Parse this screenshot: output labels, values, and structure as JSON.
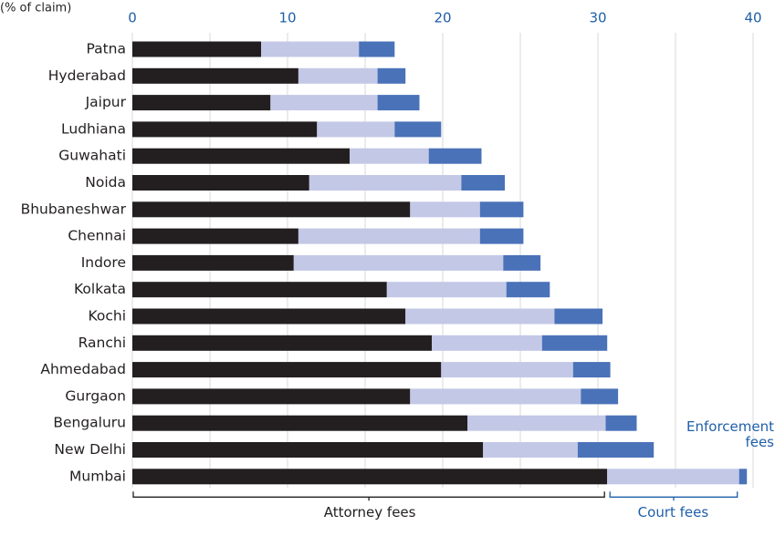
{
  "chart_data": {
    "type": "stacked-hbar",
    "x_label": "(% of claim)",
    "categories": [
      "Patna",
      "Hyderabad",
      "Jaipur",
      "Ludhiana",
      "Guwahati",
      "Noida",
      "Bhubaneshwar",
      "Chennai",
      "Indore",
      "Kolkata",
      "Kochi",
      "Ranchi",
      "Ahmedabad",
      "Gurgaon",
      "Bengaluru",
      "New Delhi",
      "Mumbai"
    ],
    "series": [
      {
        "name": "Attorney fees",
        "color": "#231f20",
        "label_color": "#231f20",
        "values": [
          8.3,
          10.7,
          8.9,
          11.9,
          14.0,
          11.4,
          17.9,
          10.7,
          10.4,
          16.4,
          17.6,
          19.3,
          19.9,
          17.9,
          21.6,
          22.6,
          30.6
        ]
      },
      {
        "name": "Court fees",
        "color": "#c3c8e6",
        "label_color": "#1f5fa8",
        "values": [
          6.3,
          5.1,
          6.9,
          5.0,
          5.1,
          9.8,
          4.5,
          11.7,
          13.5,
          7.7,
          9.6,
          7.1,
          8.5,
          11.0,
          8.9,
          6.1,
          8.5
        ]
      },
      {
        "name": "Enforcement fees",
        "color": "#4a72b8",
        "label_color": "#1f5fa8",
        "values": [
          2.3,
          1.8,
          2.7,
          3.0,
          3.4,
          2.8,
          2.8,
          2.8,
          2.4,
          2.8,
          3.1,
          4.2,
          2.4,
          2.4,
          2.0,
          4.9,
          0.5
        ]
      }
    ],
    "xlim": [
      0,
      40
    ],
    "xticks": [
      0,
      10,
      20,
      30,
      40
    ],
    "minor_gridlines": [
      5,
      15,
      25,
      35
    ],
    "grid": true,
    "tick_color": "#1f5fa8"
  }
}
